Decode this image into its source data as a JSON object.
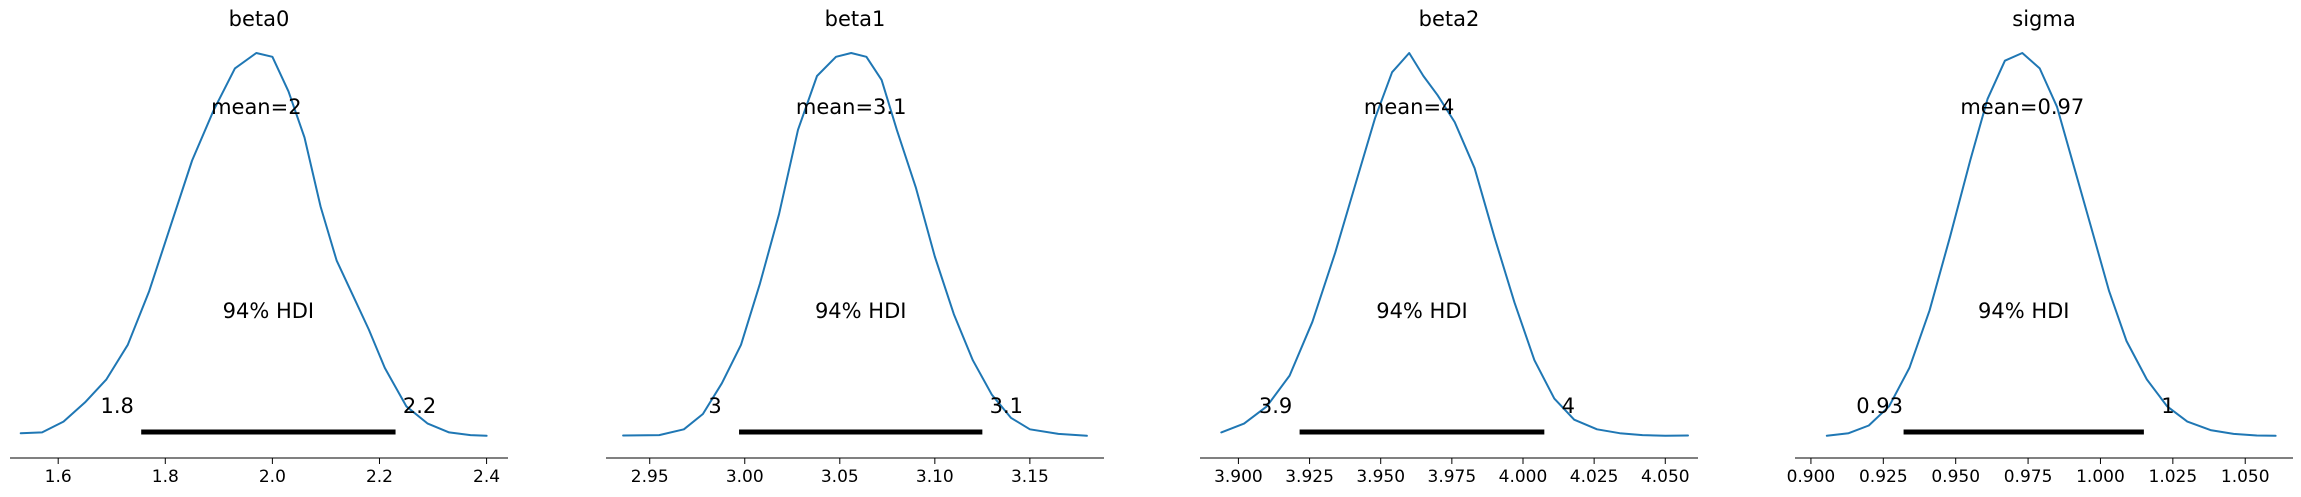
{
  "colors": {
    "kde_line": "#1f77b4",
    "hdi_bar": "#000000",
    "axis": "#000000"
  },
  "chart_data": [
    {
      "type": "area",
      "title": "beta0",
      "mean_label": "mean=2",
      "hdi_label": "94% HDI",
      "hdi_low": 1.755,
      "hdi_high": 2.23,
      "hdi_low_label": "1.8",
      "hdi_high_label": "2.2",
      "xlim": [
        1.51,
        2.44
      ],
      "xticks": [
        1.6,
        1.8,
        2.0,
        2.2,
        2.4
      ],
      "xtick_labels": [
        "1.6",
        "1.8",
        "2.0",
        "2.2",
        "2.4"
      ],
      "x": [
        1.53,
        1.57,
        1.61,
        1.65,
        1.69,
        1.73,
        1.77,
        1.81,
        1.85,
        1.89,
        1.93,
        1.97,
        2.0,
        2.03,
        2.06,
        2.09,
        2.12,
        2.15,
        2.18,
        2.21,
        2.25,
        2.29,
        2.33,
        2.37,
        2.4
      ],
      "y": [
        0.01,
        0.012,
        0.04,
        0.09,
        0.15,
        0.24,
        0.38,
        0.55,
        0.72,
        0.85,
        0.96,
        1.0,
        0.99,
        0.9,
        0.78,
        0.6,
        0.46,
        0.37,
        0.28,
        0.18,
        0.08,
        0.035,
        0.012,
        0.005,
        0.003
      ]
    },
    {
      "type": "area",
      "title": "beta1",
      "mean_label": "mean=3.1",
      "hdi_label": "94% HDI",
      "hdi_low": 2.997,
      "hdi_high": 3.125,
      "hdi_low_label": "3",
      "hdi_high_label": "3.1",
      "xlim": [
        2.927,
        3.189
      ],
      "xticks": [
        2.95,
        3.0,
        3.05,
        3.1,
        3.15
      ],
      "xtick_labels": [
        "2.95",
        "3.00",
        "3.05",
        "3.10",
        "3.15"
      ],
      "x": [
        2.936,
        2.955,
        2.968,
        2.978,
        2.988,
        2.998,
        3.008,
        3.018,
        3.028,
        3.038,
        3.048,
        3.056,
        3.064,
        3.072,
        3.08,
        3.09,
        3.1,
        3.11,
        3.12,
        3.13,
        3.14,
        3.15,
        3.165,
        3.18
      ],
      "y": [
        0.004,
        0.005,
        0.02,
        0.06,
        0.14,
        0.24,
        0.4,
        0.58,
        0.8,
        0.94,
        0.99,
        1.0,
        0.99,
        0.93,
        0.8,
        0.65,
        0.47,
        0.32,
        0.2,
        0.11,
        0.05,
        0.02,
        0.008,
        0.003
      ]
    },
    {
      "type": "area",
      "title": "beta2",
      "mean_label": "mean=4",
      "hdi_label": "94% HDI",
      "hdi_low": 3.9215,
      "hdi_high": 4.0075,
      "hdi_low_label": "3.9",
      "hdi_high_label": "4",
      "xlim": [
        3.8865,
        4.0615
      ],
      "xticks": [
        3.9,
        3.925,
        3.95,
        3.975,
        4.0,
        4.025,
        4.05
      ],
      "xtick_labels": [
        "3.900",
        "3.925",
        "3.950",
        "3.975",
        "4.000",
        "4.025",
        "4.050"
      ],
      "x": [
        3.894,
        3.902,
        3.91,
        3.918,
        3.926,
        3.934,
        3.942,
        3.948,
        3.954,
        3.96,
        3.965,
        3.97,
        3.976,
        3.983,
        3.99,
        3.997,
        4.004,
        4.011,
        4.018,
        4.026,
        4.034,
        4.042,
        4.05,
        4.058
      ],
      "y": [
        0.012,
        0.035,
        0.08,
        0.16,
        0.3,
        0.48,
        0.68,
        0.83,
        0.95,
        1.0,
        0.94,
        0.89,
        0.82,
        0.7,
        0.52,
        0.35,
        0.2,
        0.1,
        0.045,
        0.02,
        0.01,
        0.005,
        0.003,
        0.004
      ]
    },
    {
      "type": "area",
      "title": "sigma",
      "mean_label": "mean=0.97",
      "hdi_label": "94% HDI",
      "hdi_low": 0.932,
      "hdi_high": 1.015,
      "hdi_low_label": "0.93",
      "hdi_high_label": "1",
      "xlim": [
        0.8945,
        1.0665
      ],
      "xticks": [
        0.9,
        0.925,
        0.95,
        0.975,
        1.0,
        1.025,
        1.05
      ],
      "xtick_labels": [
        "0.900",
        "0.925",
        "0.950",
        "0.975",
        "1.000",
        "1.025",
        "1.050"
      ],
      "x": [
        0.9055,
        0.913,
        0.92,
        0.927,
        0.934,
        0.941,
        0.948,
        0.955,
        0.961,
        0.967,
        0.973,
        0.979,
        0.985,
        0.991,
        0.997,
        1.003,
        1.009,
        1.016,
        1.023,
        1.03,
        1.038,
        1.046,
        1.054,
        1.0605
      ],
      "y": [
        0.003,
        0.01,
        0.03,
        0.08,
        0.18,
        0.33,
        0.52,
        0.72,
        0.88,
        0.98,
        1.0,
        0.96,
        0.86,
        0.7,
        0.54,
        0.38,
        0.25,
        0.15,
        0.08,
        0.04,
        0.018,
        0.008,
        0.004,
        0.003
      ]
    }
  ]
}
